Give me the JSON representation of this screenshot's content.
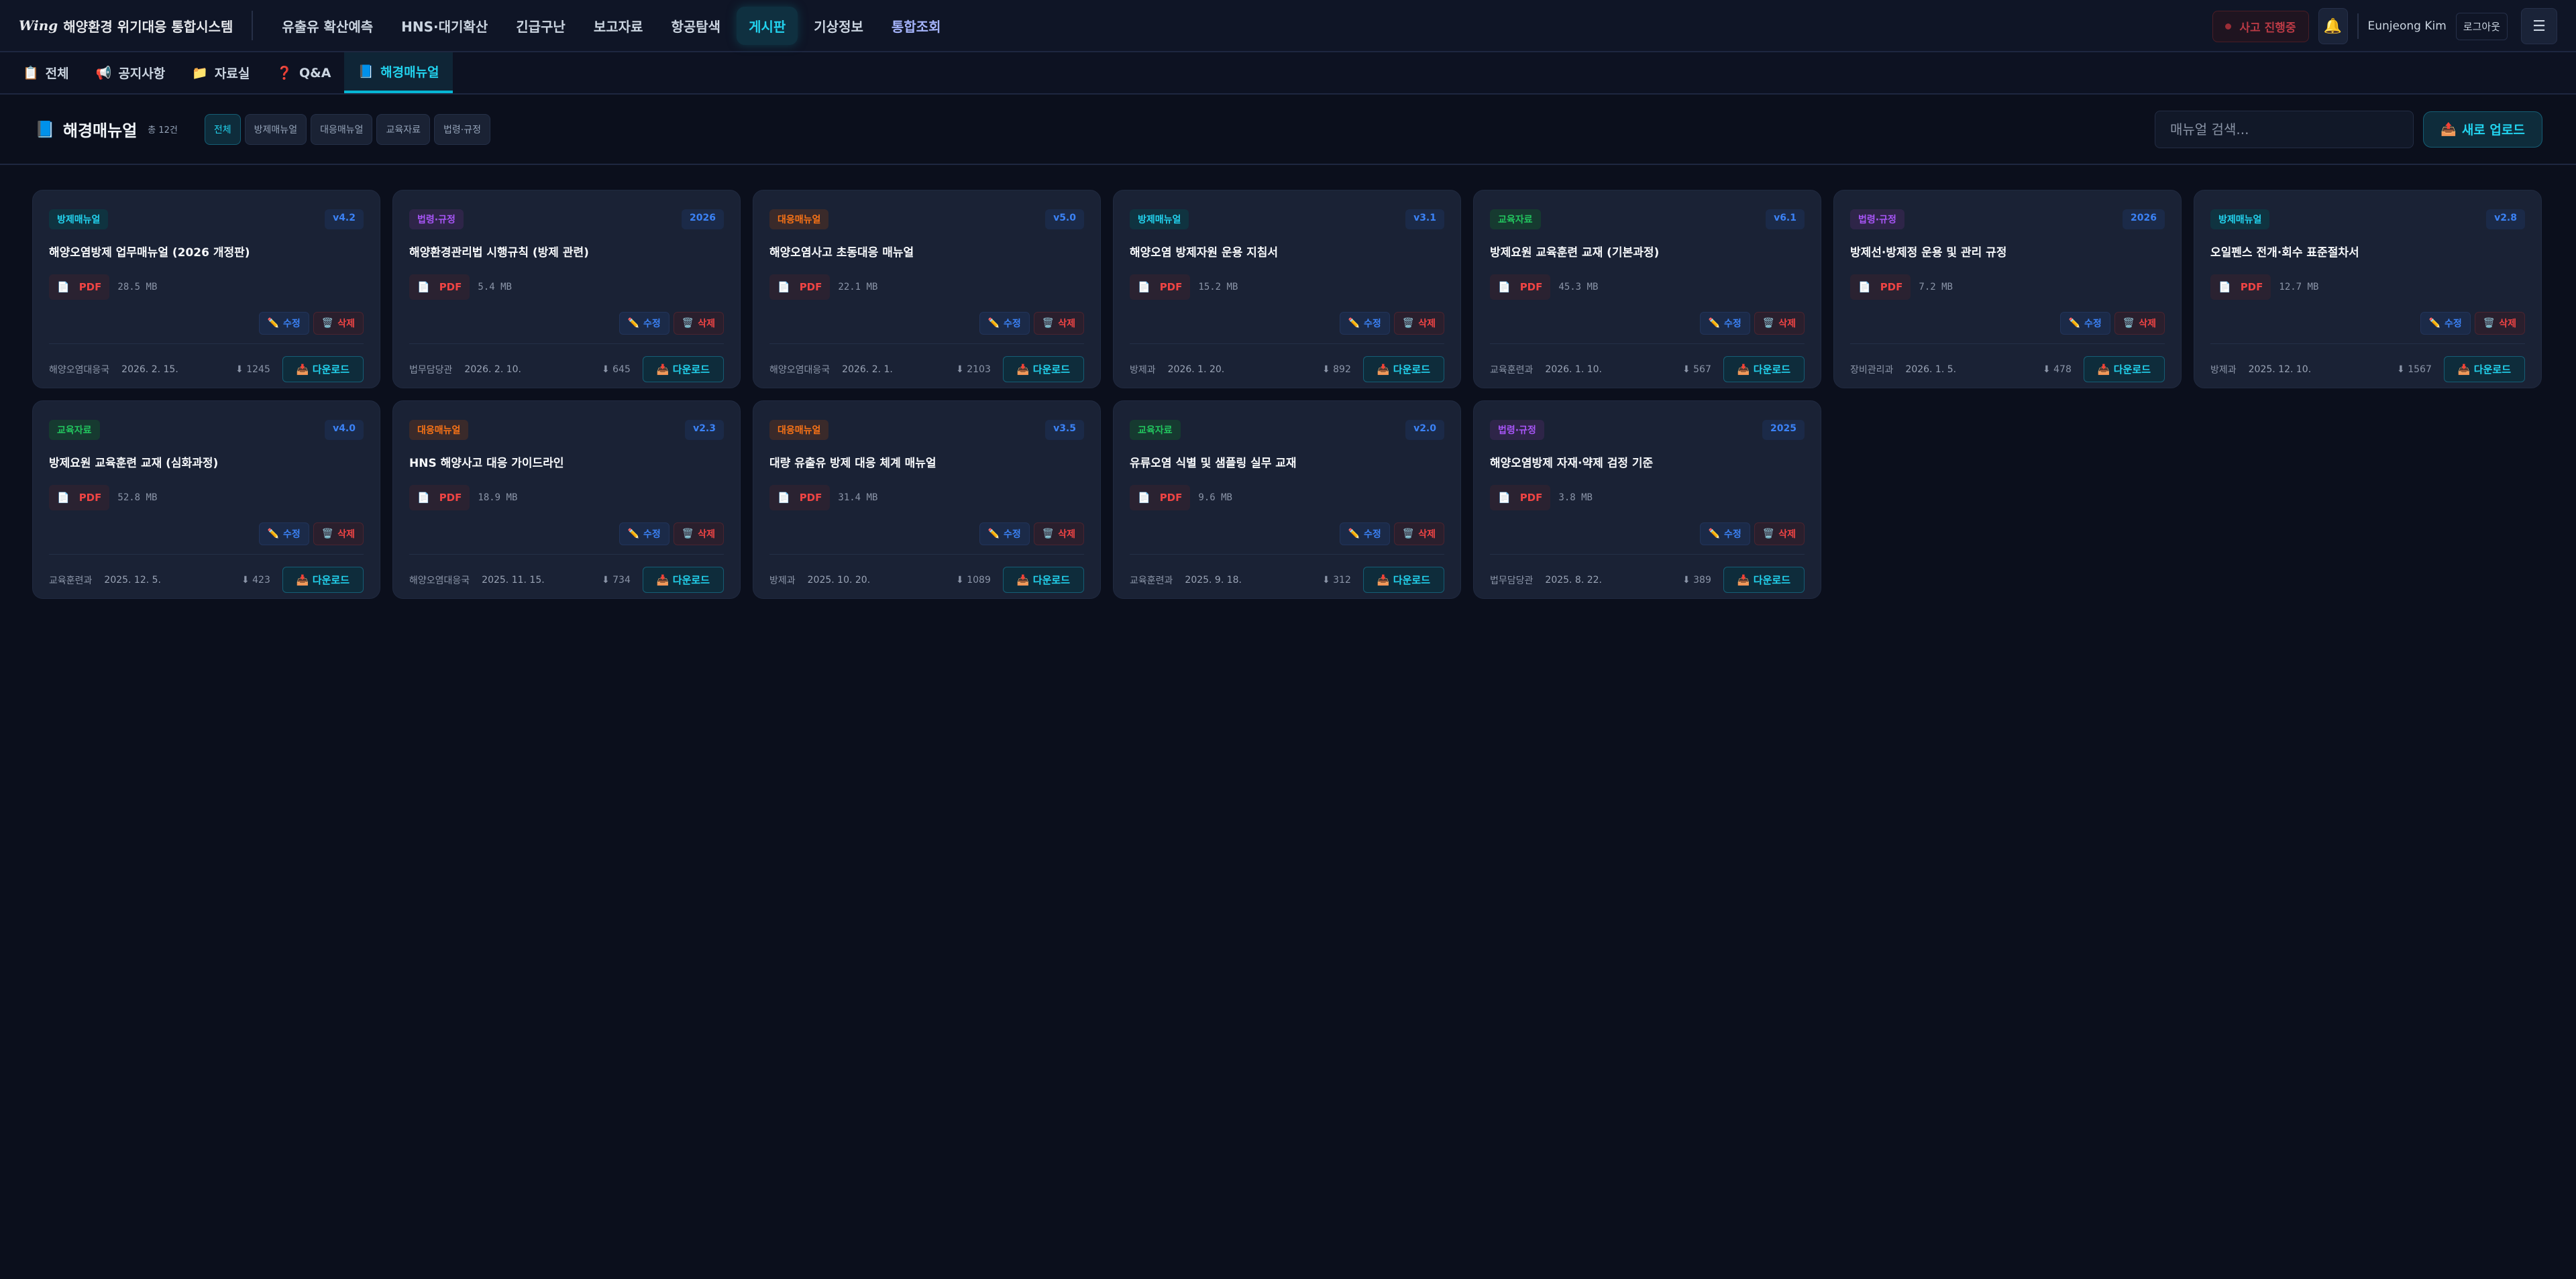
{
  "app": {
    "logo_mark": "Wing",
    "title": "해양환경 위기대응 통합시스템"
  },
  "nav": [
    {
      "label": "유출유 확산예측"
    },
    {
      "label": "HNS·대기확산"
    },
    {
      "label": "긴급구난"
    },
    {
      "label": "보고자료"
    },
    {
      "label": "항공탐색"
    },
    {
      "label": "게시판",
      "active": true
    },
    {
      "label": "기상정보"
    },
    {
      "label": "통합조회",
      "accent": true
    }
  ],
  "header": {
    "incident_label": "사고 진행중",
    "bell_icon": "🔔",
    "user_name": "Eunjeong Kim",
    "logout_label": "로그아웃",
    "menu_icon": "☰"
  },
  "subtabs": [
    {
      "icon": "📋",
      "label": "전체"
    },
    {
      "icon": "📢",
      "label": "공지사항"
    },
    {
      "icon": "📁",
      "label": "자료실"
    },
    {
      "icon": "❓",
      "label": "Q&A"
    },
    {
      "icon": "📘",
      "label": "해경매뉴얼",
      "active": true
    }
  ],
  "section": {
    "icon": "📘",
    "title": "해경매뉴얼",
    "count": "총 12건",
    "filters": [
      {
        "label": "전체",
        "active": true
      },
      {
        "label": "방제매뉴얼"
      },
      {
        "label": "대응매뉴얼"
      },
      {
        "label": "교육자료"
      },
      {
        "label": "법령·규정"
      }
    ],
    "search_placeholder": "매뉴얼 검색...",
    "upload_icon": "📤",
    "upload_label": "새로 업로드"
  },
  "category_colors": {
    "방제매뉴얼": {
      "fg": "#22d3ee",
      "bg": "#0f3340"
    },
    "대응매뉴얼": {
      "fg": "#f97316",
      "bg": "#3a2a2a"
    },
    "교육자료": {
      "fg": "#22c55e",
      "bg": "#163a30"
    },
    "법령·규정": {
      "fg": "#a855f7",
      "bg": "#2e2548"
    }
  },
  "card_labels": {
    "file_icon": "📄",
    "file_type": "PDF",
    "edit_icon": "✏️",
    "edit_label": "수정",
    "delete_icon": "🗑️",
    "delete_label": "삭제",
    "download_count_icon": "⬇",
    "download_icon": "📥",
    "download_label": "다운로드"
  },
  "manuals": [
    {
      "category": "방제매뉴얼",
      "version": "v4.2",
      "title": "해양오염방제 업무매뉴얼 (2026 개정판)",
      "size": "28.5 MB",
      "dept": "해양오염대응국",
      "date": "2026. 2. 15.",
      "downloads": "1245"
    },
    {
      "category": "법령·규정",
      "version": "2026",
      "title": "해양환경관리법 시행규칙 (방제 관련)",
      "size": "5.4 MB",
      "dept": "법무담당관",
      "date": "2026. 2. 10.",
      "downloads": "645"
    },
    {
      "category": "대응매뉴얼",
      "version": "v5.0",
      "title": "해양오염사고 초동대응 매뉴얼",
      "size": "22.1 MB",
      "dept": "해양오염대응국",
      "date": "2026. 2. 1.",
      "downloads": "2103"
    },
    {
      "category": "방제매뉴얼",
      "version": "v3.1",
      "title": "해양오염 방제자원 운용 지침서",
      "size": "15.2 MB",
      "dept": "방제과",
      "date": "2026. 1. 20.",
      "downloads": "892"
    },
    {
      "category": "교육자료",
      "version": "v6.1",
      "title": "방제요원 교육훈련 교재 (기본과정)",
      "size": "45.3 MB",
      "dept": "교육훈련과",
      "date": "2026. 1. 10.",
      "downloads": "567"
    },
    {
      "category": "법령·규정",
      "version": "2026",
      "title": "방제선·방제정 운용 및 관리 규정",
      "size": "7.2 MB",
      "dept": "장비관리과",
      "date": "2026. 1. 5.",
      "downloads": "478"
    },
    {
      "category": "방제매뉴얼",
      "version": "v2.8",
      "title": "오일펜스 전개·회수 표준절차서",
      "size": "12.7 MB",
      "dept": "방제과",
      "date": "2025. 12. 10.",
      "downloads": "1567"
    },
    {
      "category": "교육자료",
      "version": "v4.0",
      "title": "방제요원 교육훈련 교재 (심화과정)",
      "size": "52.8 MB",
      "dept": "교육훈련과",
      "date": "2025. 12. 5.",
      "downloads": "423"
    },
    {
      "category": "대응매뉴얼",
      "version": "v2.3",
      "title": "HNS 해양사고 대응 가이드라인",
      "size": "18.9 MB",
      "dept": "해양오염대응국",
      "date": "2025. 11. 15.",
      "downloads": "734"
    },
    {
      "category": "대응매뉴얼",
      "version": "v3.5",
      "title": "대량 유출유 방제 대응 체계 매뉴얼",
      "size": "31.4 MB",
      "dept": "방제과",
      "date": "2025. 10. 20.",
      "downloads": "1089"
    },
    {
      "category": "교육자료",
      "version": "v2.0",
      "title": "유류오염 식별 및 샘플링 실무 교재",
      "size": "9.6 MB",
      "dept": "교육훈련과",
      "date": "2025. 9. 18.",
      "downloads": "312"
    },
    {
      "category": "법령·규정",
      "version": "2025",
      "title": "해양오염방제 자재·약제 검정 기준",
      "size": "3.8 MB",
      "dept": "법무담당관",
      "date": "2025. 8. 22.",
      "downloads": "389"
    }
  ]
}
